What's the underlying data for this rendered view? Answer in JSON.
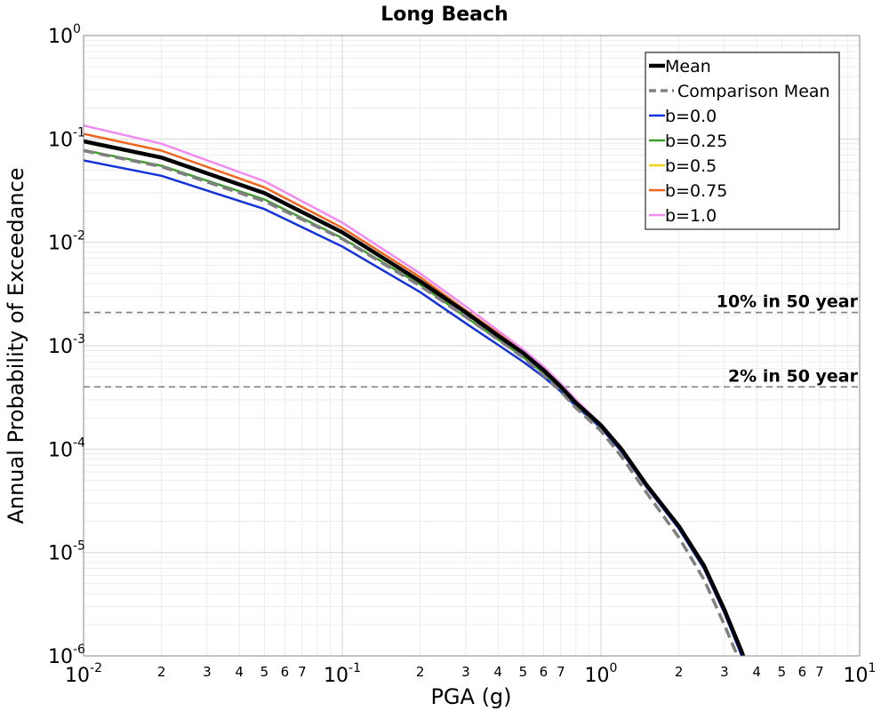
{
  "chart_data": {
    "type": "line",
    "title": "Long Beach",
    "xlabel": "PGA (g)",
    "ylabel": "Annual Probability of Exceedance",
    "x_scale": "log",
    "y_scale": "log",
    "xlim": [
      0.01,
      10
    ],
    "ylim": [
      1e-06,
      1
    ],
    "grid": true,
    "legend_position": "top-right",
    "x_major_ticks": [
      {
        "value": 0.01,
        "base": "10",
        "exp": "-2"
      },
      {
        "value": 0.1,
        "base": "10",
        "exp": "-1"
      },
      {
        "value": 1,
        "base": "10",
        "exp": "0"
      },
      {
        "value": 10,
        "base": "10",
        "exp": "1"
      }
    ],
    "y_major_ticks": [
      {
        "value": 1,
        "base": "10",
        "exp": "0"
      },
      {
        "value": 0.1,
        "base": "10",
        "exp": "-1"
      },
      {
        "value": 0.01,
        "base": "10",
        "exp": "-2"
      },
      {
        "value": 0.001,
        "base": "10",
        "exp": "-3"
      },
      {
        "value": 0.0001,
        "base": "10",
        "exp": "-4"
      },
      {
        "value": 1e-05,
        "base": "10",
        "exp": "-5"
      },
      {
        "value": 1e-06,
        "base": "10",
        "exp": "-6"
      }
    ],
    "x_minor_tick_labels": [
      "2",
      "3",
      "4",
      "5",
      "6",
      "7"
    ],
    "series": [
      {
        "name": "Mean",
        "color": "#000000",
        "dash": "solid",
        "width": 4.5,
        "x": [
          0.01,
          0.02,
          0.05,
          0.1,
          0.2,
          0.3,
          0.4,
          0.5,
          0.6,
          0.7,
          0.8,
          1.0,
          1.2,
          1.5,
          2.0,
          2.5,
          3.0,
          3.5,
          4.0
        ],
        "y": [
          0.095,
          0.066,
          0.03,
          0.0125,
          0.0042,
          0.0021,
          0.00125,
          0.00085,
          0.00058,
          0.0004,
          0.00028,
          0.00017,
          0.0001,
          4.5e-05,
          1.8e-05,
          7.5e-06,
          2.8e-06,
          1.1e-06,
          4e-07
        ]
      },
      {
        "name": "Comparison Mean",
        "color": "#808080",
        "dash": "dashed",
        "width": 3.5,
        "x": [
          0.01,
          0.02,
          0.05,
          0.1,
          0.2,
          0.3,
          0.4,
          0.5,
          0.6,
          0.7,
          0.8,
          1.0,
          1.2,
          1.5,
          2.0,
          2.5,
          3.0,
          3.5,
          3.8
        ],
        "y": [
          0.077,
          0.054,
          0.025,
          0.0108,
          0.0038,
          0.0019,
          0.00115,
          0.00077,
          0.00052,
          0.00036,
          0.00025,
          0.00015,
          8.5e-05,
          3.8e-05,
          1.4e-05,
          5.5e-06,
          2e-06,
          8e-07,
          5e-07
        ]
      },
      {
        "name": "b=0.0",
        "color": "#1432DC",
        "dash": "solid",
        "width": 2.5,
        "x": [
          0.01,
          0.02,
          0.05,
          0.1,
          0.2,
          0.3,
          0.4,
          0.5,
          0.6,
          0.7,
          0.8,
          1.0,
          1.2,
          1.5,
          2.0,
          2.5,
          3.0,
          3.5,
          4.0
        ],
        "y": [
          0.062,
          0.044,
          0.021,
          0.0091,
          0.0033,
          0.00165,
          0.00102,
          0.0007,
          0.0005,
          0.00036,
          0.00026,
          0.00016,
          9.5e-05,
          4.3e-05,
          1.7e-05,
          7e-06,
          2.6e-06,
          1e-06,
          3.8e-07
        ]
      },
      {
        "name": "b=0.25",
        "color": "#3CA028",
        "dash": "solid",
        "width": 2.5,
        "x": [
          0.01,
          0.02,
          0.05,
          0.1,
          0.2,
          0.3,
          0.4,
          0.5,
          0.6,
          0.7,
          0.8,
          1.0,
          1.2,
          1.5,
          2.0,
          2.5,
          3.0,
          3.5,
          4.0
        ],
        "y": [
          0.078,
          0.055,
          0.026,
          0.011,
          0.0039,
          0.0019,
          0.00115,
          0.00078,
          0.00054,
          0.00038,
          0.00027,
          0.000165,
          9.8e-05,
          4.4e-05,
          1.75e-05,
          7.2e-06,
          2.7e-06,
          1.05e-06,
          3.9e-07
        ]
      },
      {
        "name": "b=0.5",
        "color": "#F0D21E",
        "dash": "solid",
        "width": 2.5,
        "x": [
          0.01,
          0.02,
          0.05,
          0.1,
          0.2,
          0.3,
          0.4,
          0.5,
          0.6,
          0.7,
          0.8,
          1.0,
          1.2,
          1.5,
          2.0,
          2.5,
          3.0,
          3.5,
          4.0
        ],
        "y": [
          0.093,
          0.065,
          0.0295,
          0.0123,
          0.0042,
          0.0021,
          0.00125,
          0.00084,
          0.00058,
          0.0004,
          0.00028,
          0.000168,
          0.0001,
          4.5e-05,
          1.8e-05,
          7.4e-06,
          2.8e-06,
          1.1e-06,
          4e-07
        ]
      },
      {
        "name": "b=0.75",
        "color": "#F0641E",
        "dash": "solid",
        "width": 2.5,
        "x": [
          0.01,
          0.02,
          0.05,
          0.1,
          0.2,
          0.3,
          0.4,
          0.5,
          0.6,
          0.7,
          0.8,
          1.0,
          1.2,
          1.5,
          2.0,
          2.5,
          3.0,
          3.5,
          4.0
        ],
        "y": [
          0.112,
          0.077,
          0.034,
          0.0138,
          0.0046,
          0.0022,
          0.00132,
          0.00088,
          0.0006,
          0.00042,
          0.00029,
          0.000172,
          0.000102,
          4.6e-05,
          1.82e-05,
          7.5e-06,
          2.8e-06,
          1.1e-06,
          4e-07
        ]
      },
      {
        "name": "b=1.0",
        "color": "#F08CF0",
        "dash": "solid",
        "width": 2.5,
        "x": [
          0.01,
          0.02,
          0.05,
          0.1,
          0.2,
          0.3,
          0.4,
          0.5,
          0.6,
          0.7,
          0.8,
          1.0,
          1.2,
          1.5,
          2.0,
          2.5,
          3.0,
          3.5,
          4.0
        ],
        "y": [
          0.135,
          0.09,
          0.039,
          0.0155,
          0.005,
          0.0024,
          0.0014,
          0.00092,
          0.00063,
          0.00043,
          0.0003,
          0.000175,
          0.000103,
          4.65e-05,
          1.84e-05,
          7.6e-06,
          2.8e-06,
          1.1e-06,
          4e-07
        ]
      }
    ],
    "annotations": [
      {
        "text": "10% in 50 year",
        "y": 0.0021,
        "color": "#808080"
      },
      {
        "text": "2% in 50 year",
        "y": 0.0004,
        "color": "#808080"
      }
    ]
  }
}
